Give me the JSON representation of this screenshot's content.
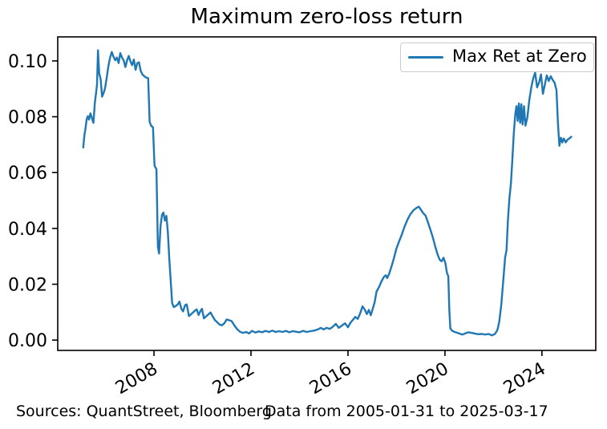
{
  "title": "Maximum zero-loss return",
  "legend": {
    "label": "Max Ret at Zero"
  },
  "footer": {
    "sources": "Sources: QuantStreet, Bloomberg",
    "range": "Data from 2005-01-31 to 2025-03-17"
  },
  "colors": {
    "line": "#1f77b4",
    "axis": "#000000",
    "legend_border": "#cccccc",
    "background": "#ffffff"
  },
  "chart_data": {
    "type": "line",
    "title": "Maximum zero-loss return",
    "xlabel": "",
    "ylabel": "",
    "legend_entries": [
      "Max Ret at Zero"
    ],
    "legend_position": "upper right",
    "grid": false,
    "xlim": [
      2004.03,
      2026.22
    ],
    "ylim": [
      -0.0037,
      0.1086
    ],
    "xticks": [
      2008,
      2012,
      2016,
      2020,
      2024
    ],
    "xtick_labels": [
      "2008",
      "2012",
      "2016",
      "2020",
      "2024"
    ],
    "yticks": [
      0.0,
      0.02,
      0.04,
      0.06,
      0.08,
      0.1
    ],
    "ytick_labels": [
      "0.00",
      "0.02",
      "0.04",
      "0.06",
      "0.08",
      "0.10"
    ],
    "series": [
      {
        "name": "Max Ret at Zero",
        "color": "#1f77b4",
        "points": [
          [
            2005.08,
            0.069
          ],
          [
            2005.13,
            0.0735
          ],
          [
            2005.17,
            0.0755
          ],
          [
            2005.22,
            0.079
          ],
          [
            2005.27,
            0.0802
          ],
          [
            2005.32,
            0.079
          ],
          [
            2005.38,
            0.0812
          ],
          [
            2005.44,
            0.0795
          ],
          [
            2005.5,
            0.0778
          ],
          [
            2005.56,
            0.085
          ],
          [
            2005.61,
            0.0885
          ],
          [
            2005.65,
            0.0915
          ],
          [
            2005.69,
            0.1038
          ],
          [
            2005.74,
            0.0955
          ],
          [
            2005.8,
            0.0935
          ],
          [
            2005.86,
            0.0872
          ],
          [
            2005.92,
            0.0885
          ],
          [
            2005.98,
            0.0902
          ],
          [
            2006.05,
            0.094
          ],
          [
            2006.12,
            0.0982
          ],
          [
            2006.19,
            0.1012
          ],
          [
            2006.26,
            0.1032
          ],
          [
            2006.33,
            0.1015
          ],
          [
            2006.4,
            0.1002
          ],
          [
            2006.47,
            0.1012
          ],
          [
            2006.54,
            0.0992
          ],
          [
            2006.61,
            0.1028
          ],
          [
            2006.68,
            0.1012
          ],
          [
            2006.75,
            0.1002
          ],
          [
            2006.82,
            0.0978
          ],
          [
            2006.89,
            0.1002
          ],
          [
            2006.96,
            0.1018
          ],
          [
            2007.03,
            0.0998
          ],
          [
            2007.1,
            0.0985
          ],
          [
            2007.17,
            0.1005
          ],
          [
            2007.24,
            0.0968
          ],
          [
            2007.31,
            0.0992
          ],
          [
            2007.38,
            0.0995
          ],
          [
            2007.45,
            0.0965
          ],
          [
            2007.52,
            0.0952
          ],
          [
            2007.6,
            0.0945
          ],
          [
            2007.68,
            0.094
          ],
          [
            2007.76,
            0.0938
          ],
          [
            2007.82,
            0.0782
          ],
          [
            2007.88,
            0.0768
          ],
          [
            2007.96,
            0.0762
          ],
          [
            2008.02,
            0.0625
          ],
          [
            2008.06,
            0.0618
          ],
          [
            2008.1,
            0.0612
          ],
          [
            2008.16,
            0.0335
          ],
          [
            2008.21,
            0.031
          ],
          [
            2008.27,
            0.0408
          ],
          [
            2008.33,
            0.0448
          ],
          [
            2008.39,
            0.0457
          ],
          [
            2008.45,
            0.0428
          ],
          [
            2008.51,
            0.0445
          ],
          [
            2008.57,
            0.0388
          ],
          [
            2008.63,
            0.0292
          ],
          [
            2008.69,
            0.0212
          ],
          [
            2008.75,
            0.0132
          ],
          [
            2008.82,
            0.0118
          ],
          [
            2008.9,
            0.0122
          ],
          [
            2008.98,
            0.0128
          ],
          [
            2009.05,
            0.0138
          ],
          [
            2009.13,
            0.0112
          ],
          [
            2009.2,
            0.0103
          ],
          [
            2009.28,
            0.0125
          ],
          [
            2009.35,
            0.0128
          ],
          [
            2009.44,
            0.0086
          ],
          [
            2009.52,
            0.0092
          ],
          [
            2009.6,
            0.0098
          ],
          [
            2009.68,
            0.0105
          ],
          [
            2009.76,
            0.011
          ],
          [
            2009.84,
            0.009
          ],
          [
            2009.92,
            0.0105
          ],
          [
            2009.98,
            0.0112
          ],
          [
            2010.06,
            0.0078
          ],
          [
            2010.15,
            0.0085
          ],
          [
            2010.24,
            0.0092
          ],
          [
            2010.33,
            0.0099
          ],
          [
            2010.42,
            0.0085
          ],
          [
            2010.51,
            0.0072
          ],
          [
            2010.6,
            0.0064
          ],
          [
            2010.7,
            0.0056
          ],
          [
            2010.8,
            0.0053
          ],
          [
            2010.9,
            0.006
          ],
          [
            2011.0,
            0.0074
          ],
          [
            2011.1,
            0.0071
          ],
          [
            2011.2,
            0.0068
          ],
          [
            2011.32,
            0.0052
          ],
          [
            2011.44,
            0.0038
          ],
          [
            2011.56,
            0.0029
          ],
          [
            2011.68,
            0.0026
          ],
          [
            2011.8,
            0.0029
          ],
          [
            2011.92,
            0.0024
          ],
          [
            2012.04,
            0.0033
          ],
          [
            2012.18,
            0.0027
          ],
          [
            2012.32,
            0.0031
          ],
          [
            2012.46,
            0.0028
          ],
          [
            2012.6,
            0.0033
          ],
          [
            2012.74,
            0.0029
          ],
          [
            2012.88,
            0.0034
          ],
          [
            2013.02,
            0.0029
          ],
          [
            2013.16,
            0.0032
          ],
          [
            2013.3,
            0.0029
          ],
          [
            2013.44,
            0.0033
          ],
          [
            2013.58,
            0.0028
          ],
          [
            2013.72,
            0.0032
          ],
          [
            2013.86,
            0.003
          ],
          [
            2014.0,
            0.0028
          ],
          [
            2014.15,
            0.0033
          ],
          [
            2014.3,
            0.0029
          ],
          [
            2014.45,
            0.0032
          ],
          [
            2014.6,
            0.0034
          ],
          [
            2014.75,
            0.0038
          ],
          [
            2014.88,
            0.0044
          ],
          [
            2015.0,
            0.0038
          ],
          [
            2015.12,
            0.0044
          ],
          [
            2015.25,
            0.004
          ],
          [
            2015.38,
            0.0048
          ],
          [
            2015.5,
            0.0058
          ],
          [
            2015.62,
            0.0044
          ],
          [
            2015.75,
            0.0052
          ],
          [
            2015.88,
            0.006
          ],
          [
            2016.0,
            0.0046
          ],
          [
            2016.1,
            0.0062
          ],
          [
            2016.2,
            0.0072
          ],
          [
            2016.3,
            0.0083
          ],
          [
            2016.4,
            0.0076
          ],
          [
            2016.5,
            0.0095
          ],
          [
            2016.6,
            0.0121
          ],
          [
            2016.7,
            0.0108
          ],
          [
            2016.78,
            0.0093
          ],
          [
            2016.86,
            0.0108
          ],
          [
            2016.94,
            0.0089
          ],
          [
            2017.02,
            0.0112
          ],
          [
            2017.1,
            0.0135
          ],
          [
            2017.18,
            0.0174
          ],
          [
            2017.28,
            0.019
          ],
          [
            2017.38,
            0.021
          ],
          [
            2017.48,
            0.0226
          ],
          [
            2017.56,
            0.0232
          ],
          [
            2017.62,
            0.0222
          ],
          [
            2017.7,
            0.0238
          ],
          [
            2017.8,
            0.0265
          ],
          [
            2017.9,
            0.0295
          ],
          [
            2018.0,
            0.0328
          ],
          [
            2018.1,
            0.0352
          ],
          [
            2018.22,
            0.0378
          ],
          [
            2018.34,
            0.0408
          ],
          [
            2018.46,
            0.0432
          ],
          [
            2018.58,
            0.0452
          ],
          [
            2018.7,
            0.0465
          ],
          [
            2018.82,
            0.0473
          ],
          [
            2018.92,
            0.0478
          ],
          [
            2019.0,
            0.0468
          ],
          [
            2019.1,
            0.0455
          ],
          [
            2019.2,
            0.0446
          ],
          [
            2019.3,
            0.0422
          ],
          [
            2019.4,
            0.0395
          ],
          [
            2019.5,
            0.0368
          ],
          [
            2019.6,
            0.0335
          ],
          [
            2019.7,
            0.0306
          ],
          [
            2019.78,
            0.0288
          ],
          [
            2019.86,
            0.0282
          ],
          [
            2019.94,
            0.0295
          ],
          [
            2020.02,
            0.0275
          ],
          [
            2020.08,
            0.0242
          ],
          [
            2020.14,
            0.0228
          ],
          [
            2020.18,
            0.0105
          ],
          [
            2020.22,
            0.0042
          ],
          [
            2020.3,
            0.0033
          ],
          [
            2020.4,
            0.0029
          ],
          [
            2020.52,
            0.0026
          ],
          [
            2020.64,
            0.0022
          ],
          [
            2020.72,
            0.002
          ],
          [
            2020.84,
            0.0024
          ],
          [
            2020.96,
            0.0028
          ],
          [
            2021.1,
            0.0026
          ],
          [
            2021.24,
            0.0023
          ],
          [
            2021.38,
            0.0021
          ],
          [
            2021.52,
            0.0022
          ],
          [
            2021.66,
            0.002
          ],
          [
            2021.8,
            0.0022
          ],
          [
            2021.94,
            0.0017
          ],
          [
            2022.06,
            0.0022
          ],
          [
            2022.16,
            0.0035
          ],
          [
            2022.24,
            0.0065
          ],
          [
            2022.32,
            0.0125
          ],
          [
            2022.4,
            0.0208
          ],
          [
            2022.48,
            0.0295
          ],
          [
            2022.54,
            0.0322
          ],
          [
            2022.6,
            0.0432
          ],
          [
            2022.66,
            0.0508
          ],
          [
            2022.72,
            0.0562
          ],
          [
            2022.78,
            0.0648
          ],
          [
            2022.84,
            0.0742
          ],
          [
            2022.9,
            0.0808
          ],
          [
            2022.95,
            0.0838
          ],
          [
            2023.0,
            0.0785
          ],
          [
            2023.05,
            0.0848
          ],
          [
            2023.1,
            0.0778
          ],
          [
            2023.15,
            0.0845
          ],
          [
            2023.2,
            0.0772
          ],
          [
            2023.26,
            0.0838
          ],
          [
            2023.32,
            0.0768
          ],
          [
            2023.4,
            0.0798
          ],
          [
            2023.48,
            0.086
          ],
          [
            2023.56,
            0.0905
          ],
          [
            2023.64,
            0.0938
          ],
          [
            2023.72,
            0.0958
          ],
          [
            2023.8,
            0.0905
          ],
          [
            2023.88,
            0.0922
          ],
          [
            2023.96,
            0.0952
          ],
          [
            2024.04,
            0.0882
          ],
          [
            2024.12,
            0.0915
          ],
          [
            2024.2,
            0.0948
          ],
          [
            2024.28,
            0.0928
          ],
          [
            2024.36,
            0.0945
          ],
          [
            2024.44,
            0.0932
          ],
          [
            2024.52,
            0.0922
          ],
          [
            2024.6,
            0.0895
          ],
          [
            2024.66,
            0.0778
          ],
          [
            2024.72,
            0.0696
          ],
          [
            2024.78,
            0.0725
          ],
          [
            2024.84,
            0.0708
          ],
          [
            2024.9,
            0.0722
          ],
          [
            2024.98,
            0.0708
          ],
          [
            2025.06,
            0.0718
          ],
          [
            2025.13,
            0.0722
          ],
          [
            2025.21,
            0.0728
          ]
        ]
      }
    ]
  }
}
